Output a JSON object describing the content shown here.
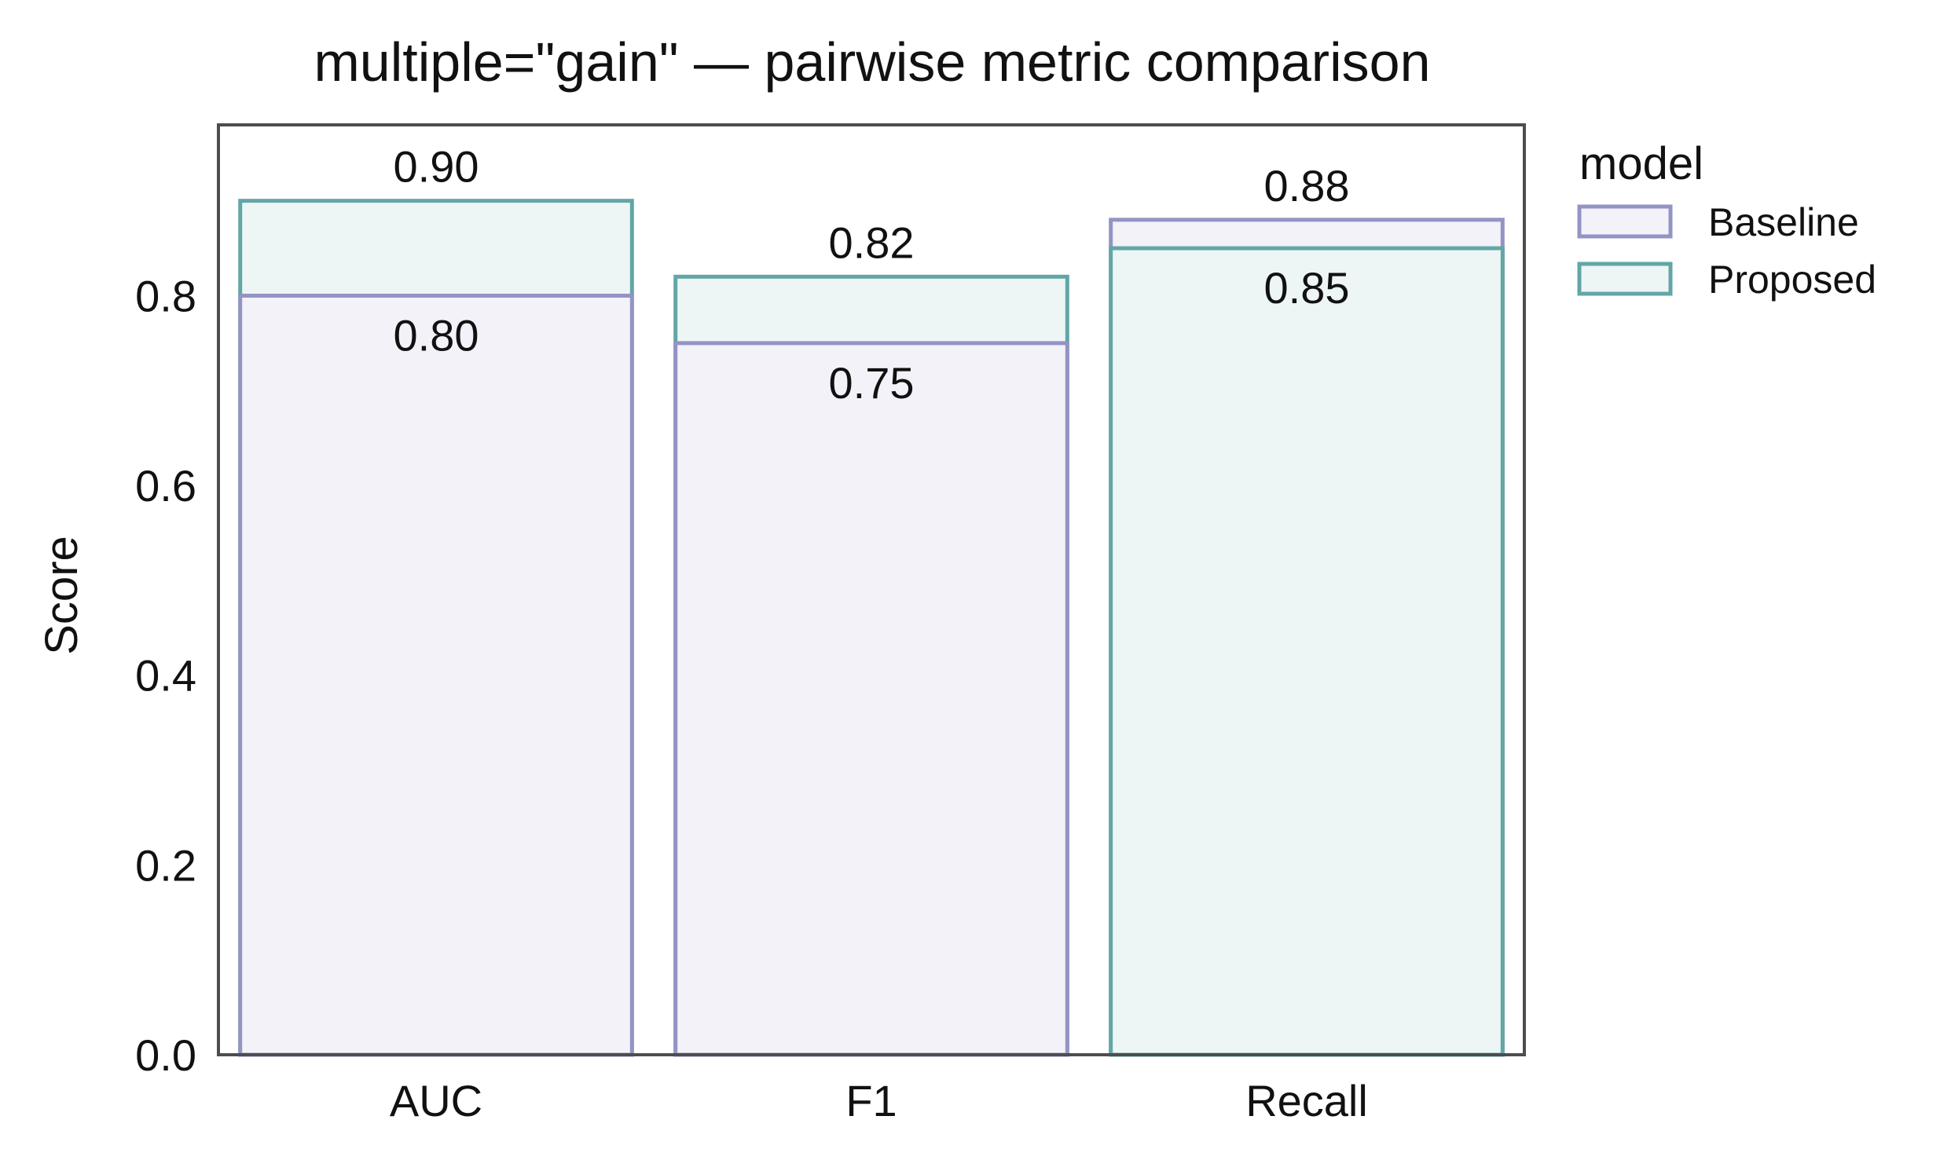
{
  "chart_data": {
    "type": "bar",
    "title": "multiple=\"gain\" — pairwise metric comparison",
    "xlabel": "",
    "ylabel": "Score",
    "categories": [
      "AUC",
      "F1",
      "Recall"
    ],
    "series": [
      {
        "name": "Baseline",
        "values": [
          0.8,
          0.75,
          0.88
        ],
        "labels": [
          "0.80",
          "0.75",
          "0.88"
        ]
      },
      {
        "name": "Proposed",
        "values": [
          0.9,
          0.82,
          0.85
        ],
        "labels": [
          "0.90",
          "0.82",
          "0.85"
        ]
      }
    ],
    "ylim": [
      0,
      0.98
    ],
    "yticks": [
      0.0,
      0.2,
      0.4,
      0.6,
      0.8
    ],
    "ytick_labels": [
      "0.0",
      "0.2",
      "0.4",
      "0.6",
      "0.8"
    ],
    "grid": false,
    "legend": {
      "title": "model",
      "placement": "outside-right-top"
    },
    "colors": {
      "Baseline": {
        "edge": "#9393c4",
        "fill": "#f3f2f9"
      },
      "Proposed": {
        "edge": "#62a6a6",
        "fill": "#edf6f5"
      },
      "axes": "#4d4d4d"
    }
  }
}
